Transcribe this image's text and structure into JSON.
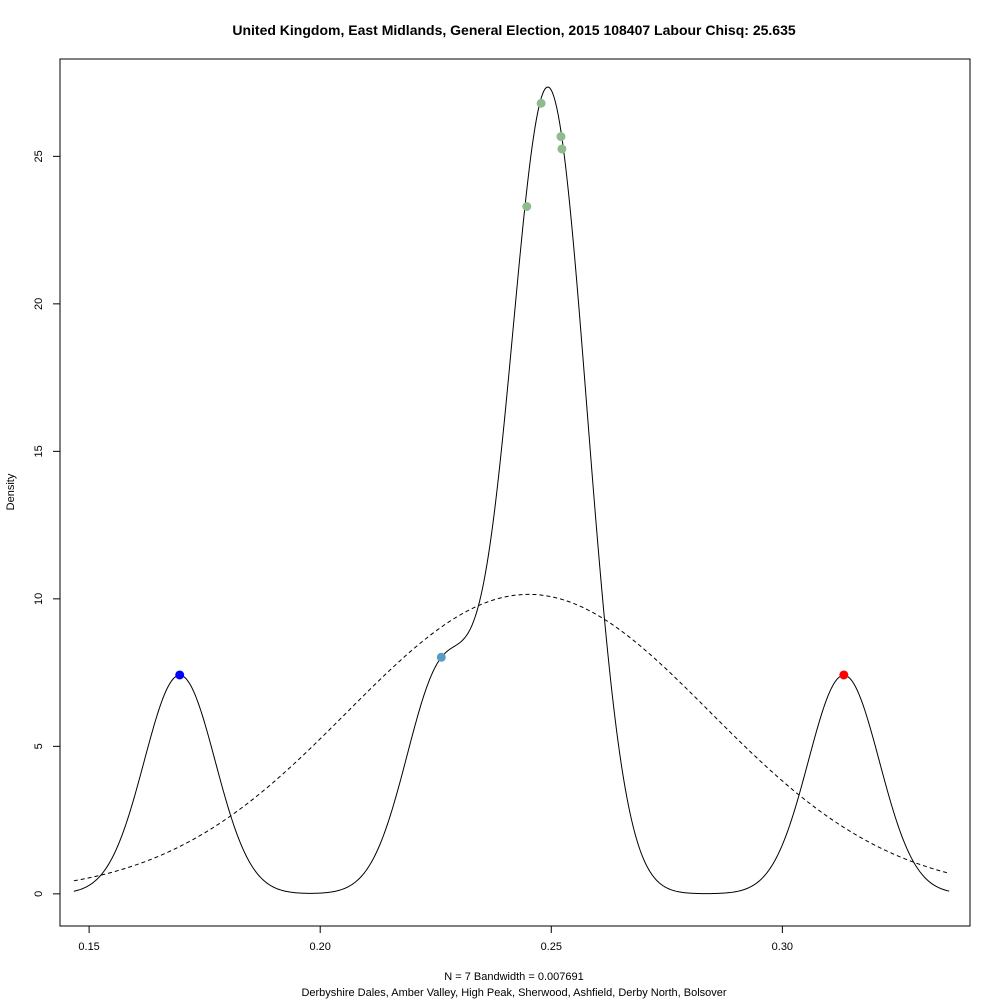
{
  "chart_data": {
    "type": "line",
    "title": "United Kingdom, East Midlands, General Election, 2015 108407 Labour Chisq: 25.635",
    "xlabel": "N = 7   Bandwidth = 0.007691",
    "xlabel2": "Derbyshire Dales, Amber Valley, High Peak, Sherwood, Ashfield, Derby North, Bolsover",
    "ylabel": "Density",
    "xlim": [
      0.1437,
      0.3406
    ],
    "ylim": [
      -1.09,
      28.3
    ],
    "x_ticks": [
      0.15,
      0.2,
      0.25,
      0.3
    ],
    "x_tick_labels": [
      "0.15",
      "0.20",
      "0.25",
      "0.30"
    ],
    "y_ticks": [
      0,
      5,
      10,
      15,
      20,
      25
    ],
    "y_tick_labels": [
      "0",
      "5",
      "10",
      "15",
      "20",
      "25"
    ],
    "grid": false,
    "legend": "none",
    "series": [
      {
        "kind": "kde",
        "style": "solid",
        "color": "#000000",
        "bandwidth": 0.007691,
        "x_range": [
          0.1467,
          0.3361
        ],
        "centers": [
          0.1696,
          0.2262,
          0.2447,
          0.2478,
          0.2521,
          0.2523,
          0.3133
        ]
      },
      {
        "kind": "normal",
        "style": "dashed",
        "color": "#000000",
        "mean": 0.2451,
        "sd": 0.0393,
        "x_range": [
          0.1467,
          0.3361
        ]
      }
    ],
    "points": [
      {
        "x": 0.1696,
        "y": 7.42,
        "color": "#0000ff"
      },
      {
        "x": 0.2262,
        "y": 8.02,
        "color": "#5a9bc4"
      },
      {
        "x": 0.2447,
        "y": 23.3,
        "color": "#8fbc8f"
      },
      {
        "x": 0.2478,
        "y": 26.8,
        "color": "#8fbc8f"
      },
      {
        "x": 0.2521,
        "y": 25.67,
        "color": "#8fbc8f"
      },
      {
        "x": 0.2523,
        "y": 25.25,
        "color": "#8fbc8f"
      },
      {
        "x": 0.3133,
        "y": 7.42,
        "color": "#ff0000"
      }
    ]
  }
}
